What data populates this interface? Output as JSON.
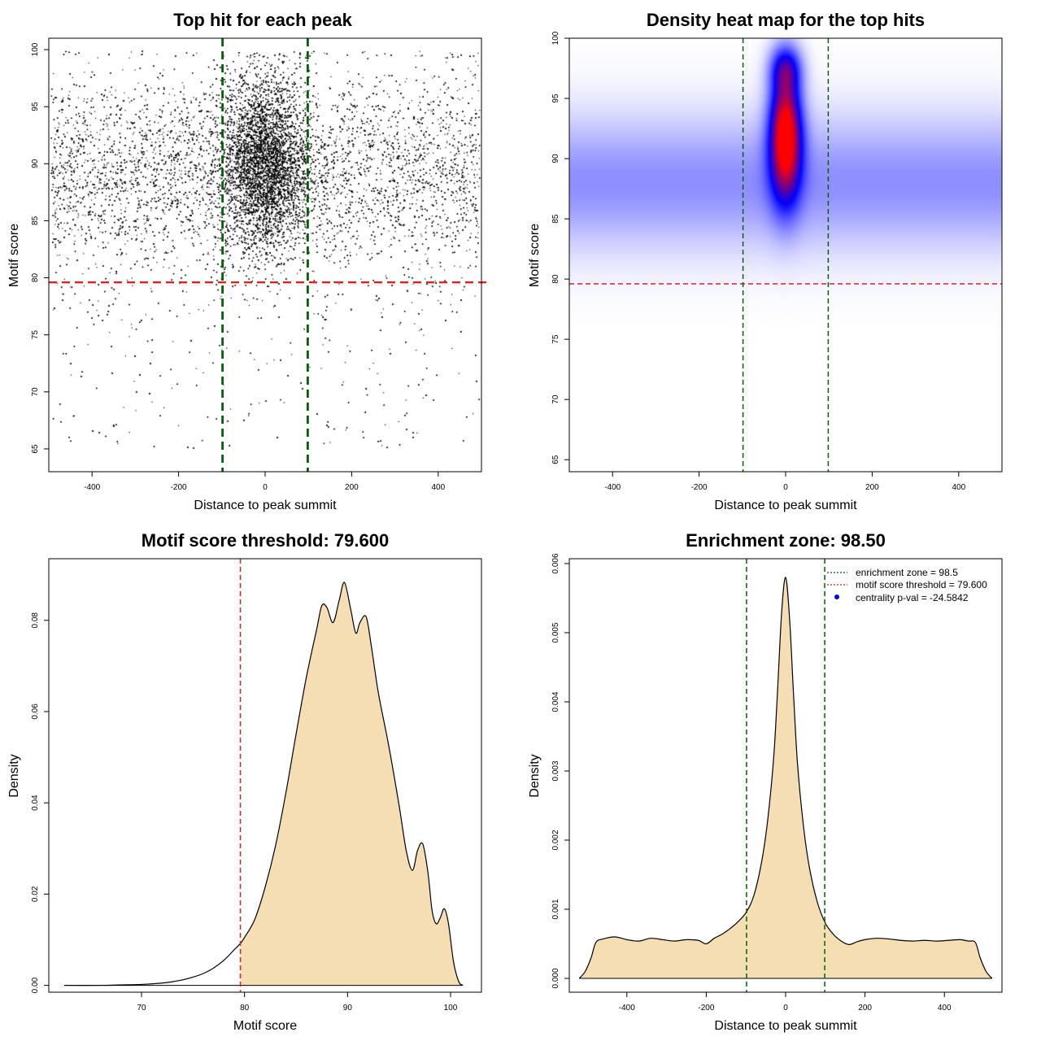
{
  "colors": {
    "threshold_line": "#dd2222",
    "zone_line": "#006400",
    "density_fill": "#f5deb3",
    "points": "#000000",
    "heat_low": "#ffffff",
    "heat_mid": "#0000ff",
    "heat_high": "#ff0000",
    "legend_point": "#0000ff"
  },
  "chart_data": [
    {
      "type": "scatter",
      "title": "Top hit for each peak",
      "xlabel": "Distance to peak summit",
      "ylabel": "Motif score",
      "xlim": [
        -500,
        500
      ],
      "ylim": [
        63,
        101
      ],
      "xticks": [
        "-400",
        "-200",
        "0",
        "200",
        "400"
      ],
      "yticks": [
        "65",
        "70",
        "75",
        "80",
        "85",
        "90",
        "95",
        "100"
      ],
      "hline": 79.6,
      "vlines": [
        -98.5,
        98.5
      ],
      "distribution": {
        "n_background": 14000,
        "n_central": 11000,
        "central_sd": 50,
        "score_mean": 89,
        "score_sd": 4.5,
        "score_max": 99.9
      }
    },
    {
      "type": "heatmap",
      "title": "Density heat map for the top hits",
      "xlabel": "Distance to peak summit",
      "ylabel": "Motif score",
      "xlim": [
        -500,
        500
      ],
      "ylim": [
        64,
        100
      ],
      "xticks": [
        "-400",
        "-200",
        "0",
        "200",
        "400"
      ],
      "yticks": [
        "65",
        "70",
        "75",
        "80",
        "85",
        "90",
        "95",
        "100"
      ],
      "hline": 79.6,
      "vlines": [
        -98.5,
        98.5
      ],
      "peak_center": {
        "x": 0,
        "y": 92
      },
      "color_scale": [
        "white",
        "blue",
        "red"
      ]
    },
    {
      "type": "area",
      "title": "Motif score threshold: 79.600",
      "xlabel": "Motif score",
      "ylabel": "Density",
      "xlim": [
        61,
        103
      ],
      "ylim": [
        -0.0015,
        0.0935
      ],
      "xticks": [
        "70",
        "80",
        "90",
        "100"
      ],
      "yticks": [
        "0.00",
        "0.02",
        "0.04",
        "0.06",
        "0.08"
      ],
      "vline": 79.6,
      "fill_from": 79.6,
      "x": [
        62.5,
        66,
        68,
        70,
        72,
        73,
        74,
        75,
        76,
        77,
        78,
        79,
        79.6,
        80,
        81,
        82,
        83,
        84,
        85,
        86,
        87,
        87.5,
        88,
        88.6,
        89.2,
        89.7,
        90.3,
        90.8,
        91.2,
        91.8,
        92.3,
        93,
        94,
        95,
        95.7,
        96.3,
        96.8,
        97.3,
        97.8,
        98.2,
        98.6,
        99,
        99.4,
        99.8,
        100.3,
        100.8,
        101.2
      ],
      "y": [
        0,
        0,
        0.0001,
        0.0002,
        0.0005,
        0.0008,
        0.0012,
        0.0018,
        0.0026,
        0.0038,
        0.0055,
        0.0078,
        0.0092,
        0.0105,
        0.0145,
        0.0215,
        0.0305,
        0.042,
        0.055,
        0.0675,
        0.078,
        0.0832,
        0.0828,
        0.0795,
        0.0845,
        0.0883,
        0.0825,
        0.0772,
        0.0795,
        0.0808,
        0.0745,
        0.064,
        0.0525,
        0.0395,
        0.0295,
        0.0252,
        0.0296,
        0.031,
        0.0248,
        0.0165,
        0.0135,
        0.0148,
        0.0168,
        0.0135,
        0.005,
        0.0008,
        0
      ]
    },
    {
      "type": "area",
      "title": "Enrichment zone: 98.50",
      "xlabel": "Distance to peak summit",
      "ylabel": "Density",
      "xlim": [
        -545,
        545
      ],
      "ylim": [
        -0.0002,
        0.00607
      ],
      "xticks": [
        "-400",
        "-200",
        "0",
        "200",
        "400"
      ],
      "yticks": [
        "0.000",
        "0.001",
        "0.002",
        "0.003",
        "0.004",
        "0.005",
        "0.006"
      ],
      "vlines": [
        -98.5,
        98.5
      ],
      "x": [
        -520,
        -505,
        -490,
        -478,
        -460,
        -430,
        -400,
        -370,
        -340,
        -310,
        -280,
        -250,
        -220,
        -200,
        -180,
        -160,
        -140,
        -120,
        -100,
        -80,
        -60,
        -45,
        -30,
        -20,
        -10,
        0,
        10,
        20,
        30,
        45,
        60,
        80,
        100,
        120,
        140,
        160,
        180,
        200,
        230,
        260,
        290,
        320,
        350,
        380,
        410,
        440,
        460,
        478,
        490,
        505,
        520
      ],
      "y": [
        0,
        0.0001,
        0.0003,
        0.00052,
        0.00057,
        0.0006,
        0.00056,
        0.00054,
        0.00058,
        0.00056,
        0.00054,
        0.00056,
        0.00055,
        0.0005,
        0.00058,
        0.00064,
        0.00072,
        0.00082,
        0.00095,
        0.0012,
        0.0017,
        0.0023,
        0.0032,
        0.0042,
        0.0053,
        0.0058,
        0.0052,
        0.0041,
        0.0031,
        0.0022,
        0.0016,
        0.0011,
        0.0008,
        0.00064,
        0.00054,
        0.00049,
        0.00053,
        0.00056,
        0.00058,
        0.00057,
        0.00055,
        0.00054,
        0.00055,
        0.00054,
        0.00055,
        0.00056,
        0.00054,
        0.00052,
        0.0003,
        0.0001,
        0
      ],
      "legend": [
        {
          "label": "enrichment zone = 98.5",
          "style": "dotted",
          "color": "#006400"
        },
        {
          "label": "motif score threshold = 79.600",
          "style": "dotted",
          "color": "#dd2222"
        },
        {
          "label": "centrality p-val = -24.5842",
          "style": "point",
          "color": "#0000ff"
        }
      ]
    }
  ]
}
